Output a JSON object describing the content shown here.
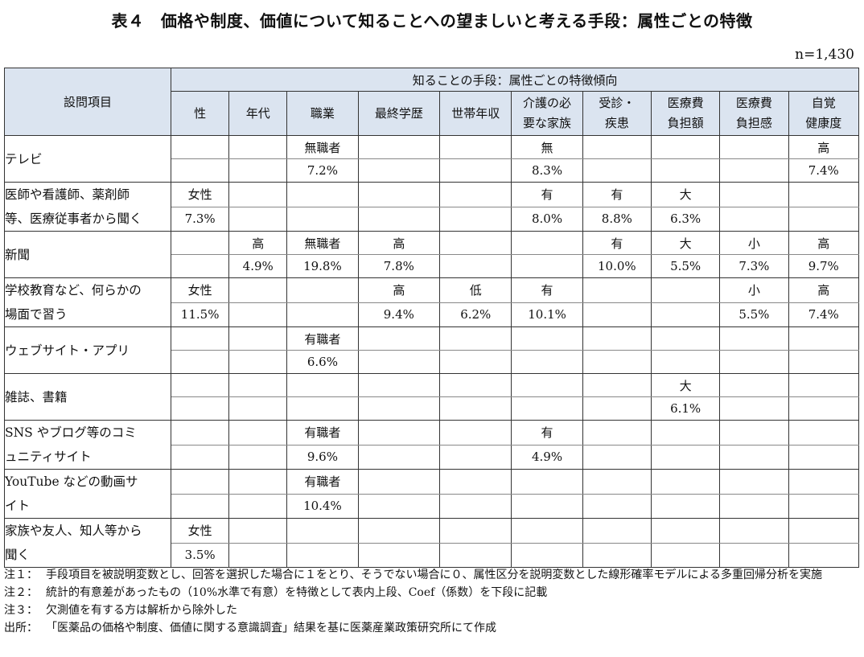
{
  "title": "表４　価格や制度、価値について知ることへの望ましいと考える手段：属性ごとの特徴",
  "n_label": "n=1,430",
  "header": {
    "item_col": "設問項目",
    "group": "知ることの手段：属性ごとの特徴傾向",
    "columns": [
      {
        "l1": "性",
        "l2": ""
      },
      {
        "l1": "年代",
        "l2": ""
      },
      {
        "l1": "職業",
        "l2": ""
      },
      {
        "l1": "最終学歴",
        "l2": ""
      },
      {
        "l1": "世帯年収",
        "l2": ""
      },
      {
        "l1": "介護の必",
        "l2": "要な家族"
      },
      {
        "l1": "受診・",
        "l2": "疾患"
      },
      {
        "l1": "医療費",
        "l2": "負担額"
      },
      {
        "l1": "医療費",
        "l2": "負担感"
      },
      {
        "l1": "自覚",
        "l2": "健康度"
      }
    ]
  },
  "rows": [
    {
      "item1": "テレビ",
      "item2": "",
      "top": [
        "",
        "",
        "無職者",
        "",
        "",
        "無",
        "",
        "",
        "",
        "高"
      ],
      "bottom": [
        "",
        "",
        "7.2%",
        "",
        "",
        "8.3%",
        "",
        "",
        "",
        "7.4%"
      ]
    },
    {
      "item1": "医師や看護師、薬剤師",
      "item2": "等、医療従事者から聞く",
      "top": [
        "女性",
        "",
        "",
        "",
        "",
        "有",
        "有",
        "大",
        "",
        ""
      ],
      "bottom": [
        "7.3%",
        "",
        "",
        "",
        "",
        "8.0%",
        "8.8%",
        "6.3%",
        "",
        ""
      ]
    },
    {
      "item1": "新聞",
      "item2": "",
      "top": [
        "",
        "高",
        "無職者",
        "高",
        "",
        "",
        "有",
        "大",
        "小",
        "高"
      ],
      "bottom": [
        "",
        "4.9%",
        "19.8%",
        "7.8%",
        "",
        "",
        "10.0%",
        "5.5%",
        "7.3%",
        "9.7%"
      ]
    },
    {
      "item1": "学校教育など、何らかの",
      "item2": "場面で習う",
      "top": [
        "女性",
        "",
        "",
        "高",
        "低",
        "有",
        "",
        "",
        "小",
        "高"
      ],
      "bottom": [
        "11.5%",
        "",
        "",
        "9.4%",
        "6.2%",
        "10.1%",
        "",
        "",
        "5.5%",
        "7.4%"
      ]
    },
    {
      "item1": "ウェブサイト・アプリ",
      "item2": "",
      "top": [
        "",
        "",
        "有職者",
        "",
        "",
        "",
        "",
        "",
        "",
        ""
      ],
      "bottom": [
        "",
        "",
        "6.6%",
        "",
        "",
        "",
        "",
        "",
        "",
        ""
      ]
    },
    {
      "item1": "雑誌、書籍",
      "item2": "",
      "top": [
        "",
        "",
        "",
        "",
        "",
        "",
        "",
        "大",
        "",
        ""
      ],
      "bottom": [
        "",
        "",
        "",
        "",
        "",
        "",
        "",
        "6.1%",
        "",
        ""
      ]
    },
    {
      "item1": "SNS やブログ等のコミ",
      "item2": "ュニティサイト",
      "top": [
        "",
        "",
        "有職者",
        "",
        "",
        "有",
        "",
        "",
        "",
        ""
      ],
      "bottom": [
        "",
        "",
        "9.6%",
        "",
        "",
        "4.9%",
        "",
        "",
        "",
        ""
      ]
    },
    {
      "item1": "YouTube などの動画サ",
      "item2": "イト",
      "top": [
        "",
        "",
        "有職者",
        "",
        "",
        "",
        "",
        "",
        "",
        ""
      ],
      "bottom": [
        "",
        "",
        "10.4%",
        "",
        "",
        "",
        "",
        "",
        "",
        ""
      ]
    },
    {
      "item1": "家族や友人、知人等から",
      "item2": "聞く",
      "top": [
        "女性",
        "",
        "",
        "",
        "",
        "",
        "",
        "",
        "",
        ""
      ],
      "bottom": [
        "3.5%",
        "",
        "",
        "",
        "",
        "",
        "",
        "",
        "",
        ""
      ]
    }
  ],
  "notes": [
    {
      "label": "注１：",
      "text": "手段項目を被説明変数とし、回答を選択した場合に１をとり、そうでない場合に０、属性区分を説明変数とした線形確率モデルによる多重回帰分析を実施"
    },
    {
      "label": "注２：",
      "text": "統計的有意差があったもの（10%水準で有意）を特徴として表内上段、Coef（係数）を下段に記載"
    },
    {
      "label": "注３：",
      "text": "欠測値を有する方は解析から除外した"
    },
    {
      "label": "出所：",
      "text": "「医薬品の価格や制度、価値に関する意識調査」結果を基に医薬産業政策研究所にて作成"
    }
  ]
}
